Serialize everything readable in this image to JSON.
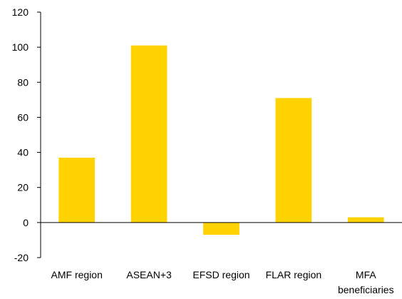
{
  "chart_data": {
    "type": "bar",
    "categories": [
      "AMF region",
      "ASEAN+3",
      "EFSD region",
      "FLAR region",
      "MFA beneficiaries"
    ],
    "category_label_lines": [
      [
        "AMF region"
      ],
      [
        "ASEAN+3"
      ],
      [
        "EFSD region"
      ],
      [
        "FLAR region"
      ],
      [
        "MFA",
        "beneficiaries"
      ]
    ],
    "values": [
      37,
      101,
      -7,
      71,
      3
    ],
    "ylim": [
      -20,
      120
    ],
    "yticks": [
      -20,
      0,
      20,
      40,
      60,
      80,
      100,
      120
    ],
    "bar_color": "#FFD200",
    "grid": false,
    "legend": "none"
  }
}
